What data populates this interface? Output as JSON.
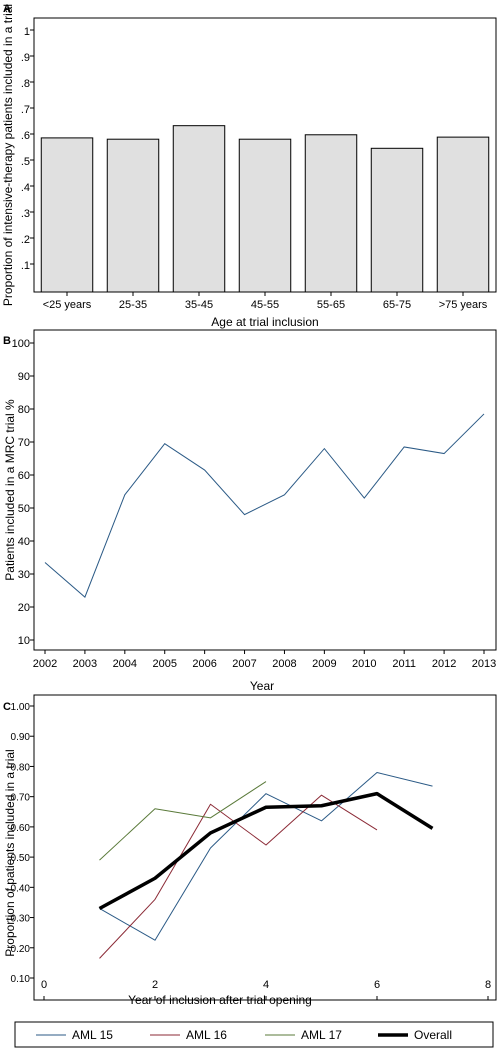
{
  "chart_data": [
    {
      "panel": "A",
      "type": "bar",
      "categories": [
        "<25 years",
        "25-35",
        "35-45",
        "45-55",
        "55-65",
        "65-75",
        ">75 years"
      ],
      "values": [
        0.585,
        0.58,
        0.632,
        0.58,
        0.597,
        0.545,
        0.588
      ],
      "ylabel": "Proportion of intensive-therapy patients included in a trial",
      "xlabel": "Age at trial inclusion",
      "ylim": [
        0,
        1
      ],
      "yticks": [
        ".1",
        ".2",
        ".3",
        ".4",
        ".5",
        ".6",
        ".7",
        ".8",
        ".9",
        "1"
      ],
      "bar_color": "#e0e0e0"
    },
    {
      "panel": "B",
      "type": "line",
      "x": [
        2002,
        2003,
        2004,
        2005,
        2006,
        2007,
        2008,
        2009,
        2010,
        2011,
        2012,
        2013
      ],
      "series": [
        {
          "values": [
            33.5,
            23,
            54,
            69.5,
            61.5,
            48,
            54,
            68,
            53,
            68.5,
            66.5,
            78.5
          ],
          "color": "#2b5a86"
        }
      ],
      "ylabel": "Patients included in a MRC trial %",
      "xlabel": "Year",
      "ylim": [
        10,
        100
      ],
      "yticks": [
        "10",
        "20",
        "30",
        "40",
        "50",
        "60",
        "70",
        "80",
        "90",
        "100"
      ],
      "xticks": [
        "2002",
        "2003",
        "2004",
        "2005",
        "2006",
        "2007",
        "2008",
        "2009",
        "2010",
        "2011",
        "2012",
        "2013"
      ]
    },
    {
      "panel": "C",
      "type": "line",
      "series": [
        {
          "name": "AML 15",
          "x": [
            1,
            2,
            3,
            4,
            5,
            6,
            7
          ],
          "values": [
            0.33,
            0.225,
            0.53,
            0.71,
            0.62,
            0.78,
            0.735
          ],
          "color": "#2b5a86",
          "width": 1
        },
        {
          "name": "AML 16",
          "x": [
            1,
            2,
            3,
            4,
            5,
            6
          ],
          "values": [
            0.165,
            0.36,
            0.675,
            0.54,
            0.705,
            0.59
          ],
          "color": "#8b2a36",
          "width": 1
        },
        {
          "name": "AML 17",
          "x": [
            1,
            2,
            3,
            4
          ],
          "values": [
            0.49,
            0.66,
            0.63,
            0.75
          ],
          "color": "#5a7a3a",
          "width": 1
        },
        {
          "name": "Overall",
          "x": [
            1,
            2,
            3,
            4,
            5,
            6,
            7
          ],
          "values": [
            0.33,
            0.43,
            0.58,
            0.665,
            0.67,
            0.71,
            0.595
          ],
          "color": "#000000",
          "width": 3.5
        }
      ],
      "ylabel": "Proportion of patients included in a trial",
      "xlabel": "Year of inclusion after trial opening",
      "xlim": [
        0,
        8
      ],
      "ylim": [
        0.1,
        1
      ],
      "yticks": [
        "0.10",
        "0.20",
        "0.30",
        "0.40",
        "0.50",
        "0.60",
        "0.70",
        "0.80",
        "0.90",
        "1.00"
      ],
      "xticks": [
        "0",
        "2",
        "4",
        "6",
        "8"
      ],
      "legend": "bottom"
    }
  ]
}
